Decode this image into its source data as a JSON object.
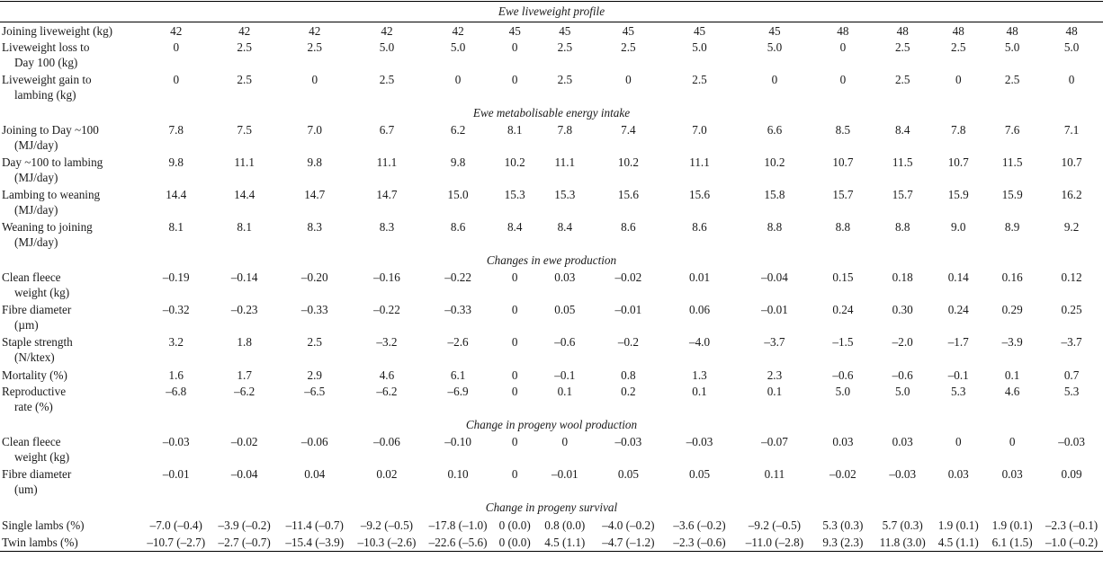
{
  "sections": [
    {
      "title": "Ewe liveweight profile",
      "rows": [
        {
          "label": [
            "Joining liveweight (kg)"
          ],
          "values": [
            "42",
            "42",
            "42",
            "42",
            "42",
            "45",
            "45",
            "45",
            "45",
            "45",
            "48",
            "48",
            "48",
            "48",
            "48"
          ]
        },
        {
          "label": [
            "Liveweight loss to",
            "Day 100 (kg)"
          ],
          "values": [
            "0",
            "2.5",
            "2.5",
            "5.0",
            "5.0",
            "0",
            "2.5",
            "2.5",
            "5.0",
            "5.0",
            "0",
            "2.5",
            "2.5",
            "5.0",
            "5.0"
          ]
        },
        {
          "label": [
            "Liveweight gain to",
            "lambing (kg)"
          ],
          "values": [
            "0",
            "2.5",
            "0",
            "2.5",
            "0",
            "0",
            "2.5",
            "0",
            "2.5",
            "0",
            "0",
            "2.5",
            "0",
            "2.5",
            "0"
          ]
        }
      ]
    },
    {
      "title": "Ewe metabolisable energy intake",
      "rows": [
        {
          "label": [
            "Joining to Day ~100",
            "(MJ/day)"
          ],
          "values": [
            "7.8",
            "7.5",
            "7.0",
            "6.7",
            "6.2",
            "8.1",
            "7.8",
            "7.4",
            "7.0",
            "6.6",
            "8.5",
            "8.4",
            "7.8",
            "7.6",
            "7.1"
          ]
        },
        {
          "label": [
            "Day ~100 to lambing",
            "(MJ/day)"
          ],
          "values": [
            "9.8",
            "11.1",
            "9.8",
            "11.1",
            "9.8",
            "10.2",
            "11.1",
            "10.2",
            "11.1",
            "10.2",
            "10.7",
            "11.5",
            "10.7",
            "11.5",
            "10.7"
          ]
        },
        {
          "label": [
            "Lambing to weaning",
            "(MJ/day)"
          ],
          "values": [
            "14.4",
            "14.4",
            "14.7",
            "14.7",
            "15.0",
            "15.3",
            "15.3",
            "15.6",
            "15.6",
            "15.8",
            "15.7",
            "15.7",
            "15.9",
            "15.9",
            "16.2"
          ]
        },
        {
          "label": [
            "Weaning to joining",
            "(MJ/day)"
          ],
          "values": [
            "8.1",
            "8.1",
            "8.3",
            "8.3",
            "8.6",
            "8.4",
            "8.4",
            "8.6",
            "8.6",
            "8.8",
            "8.8",
            "8.8",
            "9.0",
            "8.9",
            "9.2"
          ]
        }
      ]
    },
    {
      "title": "Changes in ewe production",
      "rows": [
        {
          "label": [
            "Clean fleece",
            "weight (kg)"
          ],
          "values": [
            "–0.19",
            "–0.14",
            "–0.20",
            "–0.16",
            "–0.22",
            "0",
            "0.03",
            "–0.02",
            "0.01",
            "–0.04",
            "0.15",
            "0.18",
            "0.14",
            "0.16",
            "0.12"
          ]
        },
        {
          "label": [
            "Fibre diameter",
            "(µm)"
          ],
          "values": [
            "–0.32",
            "–0.23",
            "–0.33",
            "–0.22",
            "–0.33",
            "0",
            "0.05",
            "–0.01",
            "0.06",
            "–0.01",
            "0.24",
            "0.30",
            "0.24",
            "0.29",
            "0.25"
          ]
        },
        {
          "label": [
            "Staple strength",
            "(N/ktex)"
          ],
          "values": [
            "3.2",
            "1.8",
            "2.5",
            "–3.2",
            "–2.6",
            "0",
            "–0.6",
            "–0.2",
            "–4.0",
            "–3.7",
            "–1.5",
            "–2.0",
            "–1.7",
            "–3.9",
            "–3.7"
          ]
        },
        {
          "label": [
            "Mortality (%)"
          ],
          "values": [
            "1.6",
            "1.7",
            "2.9",
            "4.6",
            "6.1",
            "0",
            "–0.1",
            "0.8",
            "1.3",
            "2.3",
            "–0.6",
            "–0.6",
            "–0.1",
            "0.1",
            "0.7"
          ]
        },
        {
          "label": [
            "Reproductive",
            "rate (%)"
          ],
          "values": [
            "–6.8",
            "–6.2",
            "–6.5",
            "–6.2",
            "–6.9",
            "0",
            "0.1",
            "0.2",
            "0.1",
            "0.1",
            "5.0",
            "5.0",
            "5.3",
            "4.6",
            "5.3"
          ]
        }
      ]
    },
    {
      "title": "Change in progeny wool production",
      "rows": [
        {
          "label": [
            "Clean fleece",
            "weight (kg)"
          ],
          "values": [
            "–0.03",
            "–0.02",
            "–0.06",
            "–0.06",
            "–0.10",
            "0",
            "0",
            "–0.03",
            "–0.03",
            "–0.07",
            "0.03",
            "0.03",
            "0",
            "0",
            "–0.03"
          ]
        },
        {
          "label": [
            "Fibre diameter",
            "(um)"
          ],
          "values": [
            "–0.01",
            "–0.04",
            "0.04",
            "0.02",
            "0.10",
            "0",
            "–0.01",
            "0.05",
            "0.05",
            "0.11",
            "–0.02",
            "–0.03",
            "0.03",
            "0.03",
            "0.09"
          ]
        }
      ]
    },
    {
      "title": "Change in progeny survival",
      "rows": [
        {
          "label": [
            "Single lambs (%)"
          ],
          "values": [
            "–7.0 (–0.4)",
            "–3.9 (–0.2)",
            "–11.4 (–0.7)",
            "–9.2 (–0.5)",
            "–17.8 (–1.0)",
            "0 (0.0)",
            "0.8 (0.0)",
            "–4.0 (–0.2)",
            "–3.6 (–0.2)",
            "–9.2 (–0.5)",
            "5.3 (0.3)",
            "5.7 (0.3)",
            "1.9 (0.1)",
            "1.9 (0.1)",
            "–2.3 (–0.1)"
          ]
        },
        {
          "label": [
            "Twin lambs (%)"
          ],
          "values": [
            "–10.7 (–2.7)",
            "–2.7 (–0.7)",
            "–15.4 (–3.9)",
            "–10.3 (–2.6)",
            "–22.6 (–5.6)",
            "0 (0.0)",
            "4.5 (1.1)",
            "–4.7 (–1.2)",
            "–2.3 (–0.6)",
            "–11.0 (–2.8)",
            "9.3 (2.3)",
            "11.8 (3.0)",
            "4.5 (1.1)",
            "6.1 (1.5)",
            "–1.0 (–0.2)"
          ]
        }
      ]
    }
  ]
}
